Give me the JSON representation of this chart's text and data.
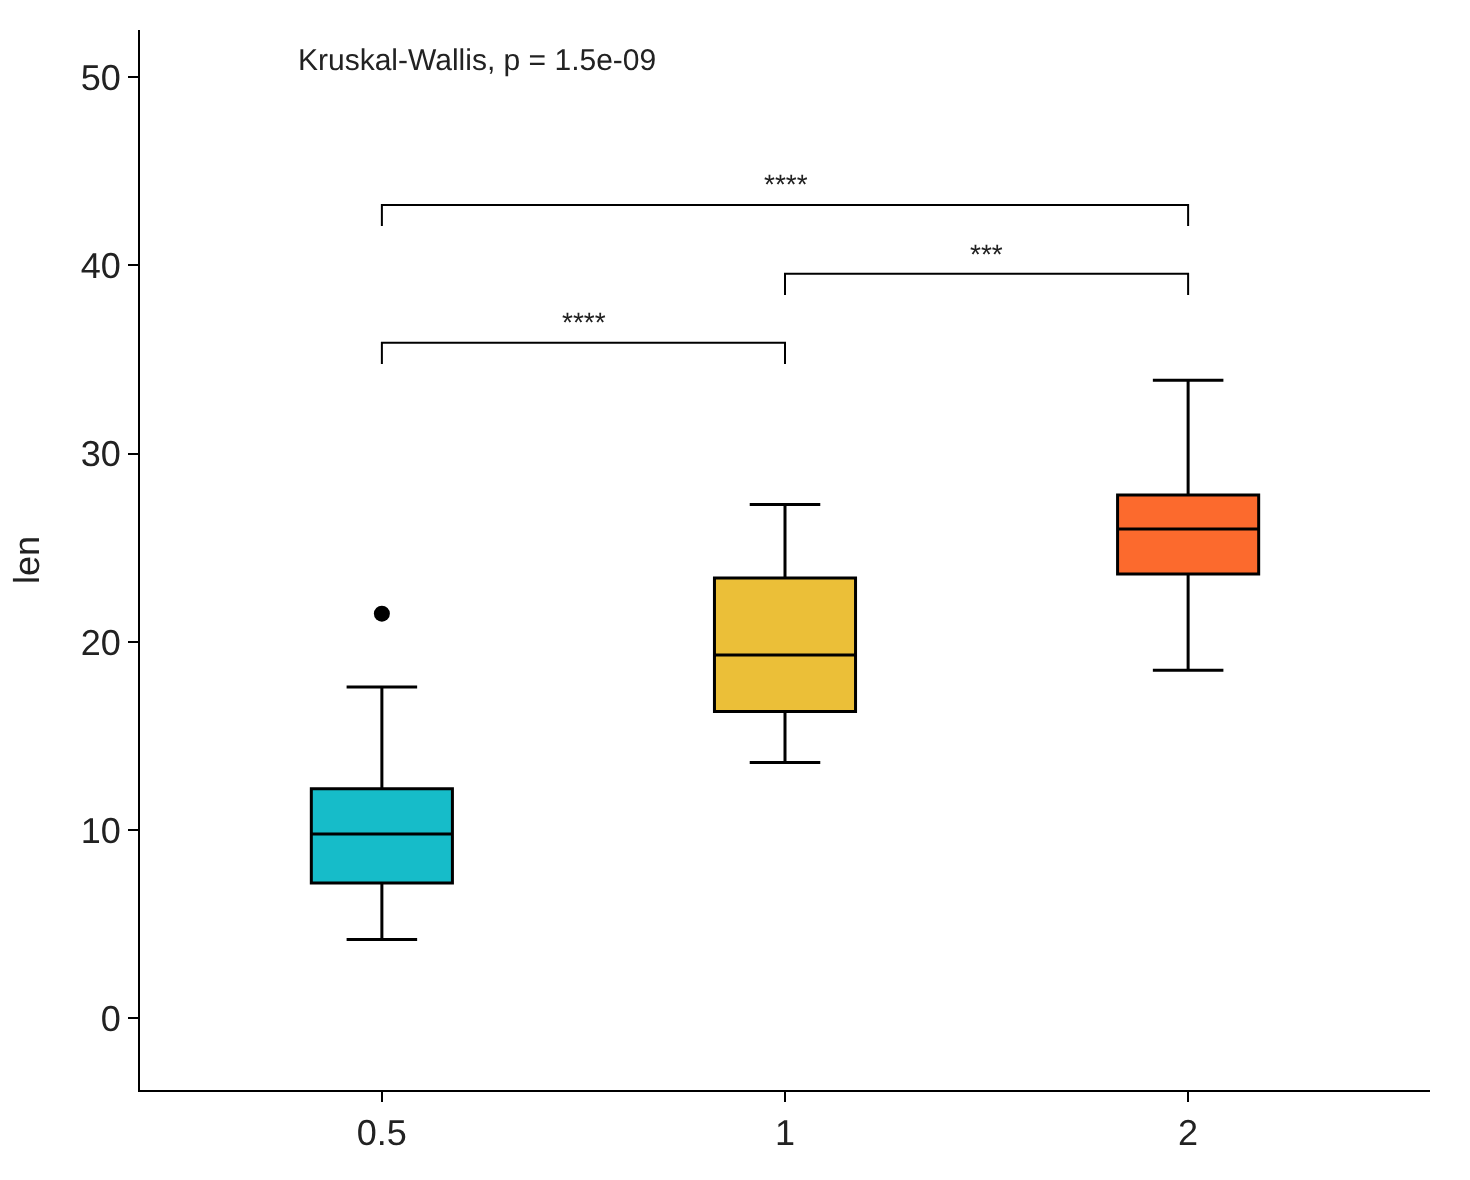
{
  "chart_data": {
    "type": "box",
    "ylabel": "len",
    "categories": [
      "0.5",
      "1",
      "2"
    ],
    "colors": [
      "#16bcc9",
      "#ebbf38",
      "#fc6a2d"
    ],
    "boxes": [
      {
        "low": 4.2,
        "q1": 7.2,
        "median": 9.8,
        "q3": 12.2,
        "high": 17.6,
        "outliers": [
          21.5
        ]
      },
      {
        "low": 13.6,
        "q1": 16.3,
        "median": 19.3,
        "q3": 23.4,
        "high": 27.3
      },
      {
        "low": 18.5,
        "q1": 23.6,
        "median": 26.0,
        "q3": 27.8,
        "high": 33.9
      }
    ],
    "ylim": [
      -3.8,
      52.5
    ],
    "yticks": [
      0,
      10,
      20,
      30,
      40,
      50
    ],
    "annotations": [
      "Kruskal-Wallis, p = 1.5e-09",
      "****",
      "***",
      "****"
    ]
  }
}
